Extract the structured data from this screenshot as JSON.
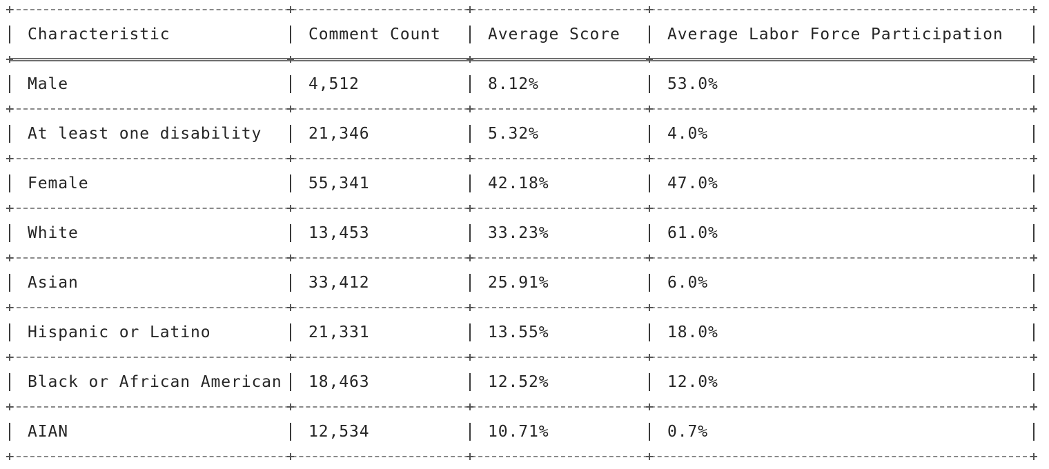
{
  "table": {
    "columns": [
      "Characteristic",
      "Comment Count",
      "Average Score",
      "Average Labor Force Participation"
    ],
    "rows": [
      [
        "Male",
        "4,512",
        "8.12%",
        "53.0%"
      ],
      [
        "At least one disability",
        "21,346",
        "5.32%",
        "4.0%"
      ],
      [
        "Female",
        "55,341",
        "42.18%",
        "47.0%"
      ],
      [
        "White",
        "13,453",
        "33.23%",
        "61.0%"
      ],
      [
        "Asian",
        "33,412",
        "25.91%",
        "6.0%"
      ],
      [
        "Hispanic or Latino",
        "21,331",
        "13.55%",
        "18.0%"
      ],
      [
        "Black or African American",
        "18,463",
        "12.52%",
        "12.0%"
      ],
      [
        "AIAN",
        "12,534",
        "10.71%",
        "0.7%"
      ]
    ]
  }
}
